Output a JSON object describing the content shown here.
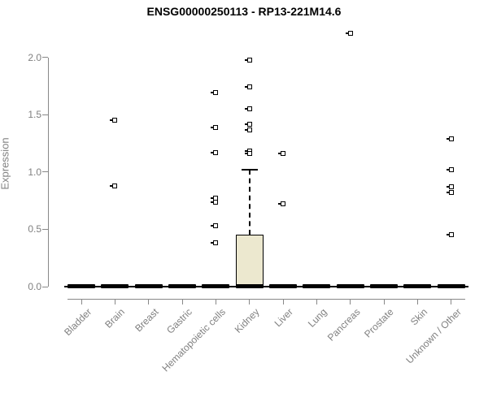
{
  "colors": {
    "box_fill": "#ece8cf",
    "axis": "#888888",
    "tick_label": "#808080",
    "title": "#000000"
  },
  "chart_data": {
    "type": "box",
    "title": "ENSG00000250113 - RP13-221M14.6",
    "xlabel": "",
    "ylabel": "Expression",
    "ylim": [
      0.0,
      2.0
    ],
    "yticks": [
      "0.0",
      "0.5",
      "1.0",
      "1.5",
      "2.0"
    ],
    "grid": false,
    "legend": "none",
    "categories": [
      "Bladder",
      "Brain",
      "Breast",
      "Gastric",
      "Hematopoietic cells",
      "Kidney",
      "Liver",
      "Lung",
      "Pancreas",
      "Prostate",
      "Skin",
      "Unknown / Other"
    ],
    "series": [
      {
        "category": "Bladder",
        "q1": 0,
        "median": 0,
        "q3": 0,
        "whisker_low": 0,
        "whisker_high": 0,
        "outliers": []
      },
      {
        "category": "Brain",
        "q1": 0,
        "median": 0,
        "q3": 0,
        "whisker_low": 0,
        "whisker_high": 0,
        "outliers": [
          1.45,
          0.88
        ]
      },
      {
        "category": "Breast",
        "q1": 0,
        "median": 0,
        "q3": 0,
        "whisker_low": 0,
        "whisker_high": 0,
        "outliers": []
      },
      {
        "category": "Gastric",
        "q1": 0,
        "median": 0,
        "q3": 0,
        "whisker_low": 0,
        "whisker_high": 0,
        "outliers": []
      },
      {
        "category": "Hematopoietic cells",
        "q1": 0,
        "median": 0,
        "q3": 0,
        "whisker_low": 0,
        "whisker_high": 0,
        "outliers": [
          1.69,
          1.39,
          1.17,
          0.77,
          0.74,
          0.53,
          0.38
        ]
      },
      {
        "category": "Kidney",
        "q1": 0,
        "median": 0,
        "q3": 0.45,
        "whisker_low": 0,
        "whisker_high": 1.02,
        "outliers": [
          1.98,
          1.74,
          1.55,
          1.42,
          1.37,
          1.18,
          1.16
        ]
      },
      {
        "category": "Liver",
        "q1": 0,
        "median": 0,
        "q3": 0,
        "whisker_low": 0,
        "whisker_high": 0,
        "outliers": [
          1.16,
          0.72
        ]
      },
      {
        "category": "Lung",
        "q1": 0,
        "median": 0,
        "q3": 0,
        "whisker_low": 0,
        "whisker_high": 0,
        "outliers": []
      },
      {
        "category": "Pancreas",
        "q1": 0,
        "median": 0,
        "q3": 0,
        "whisker_low": 0,
        "whisker_high": 0,
        "outliers": [
          2.21
        ]
      },
      {
        "category": "Prostate",
        "q1": 0,
        "median": 0,
        "q3": 0,
        "whisker_low": 0,
        "whisker_high": 0,
        "outliers": []
      },
      {
        "category": "Skin",
        "q1": 0,
        "median": 0,
        "q3": 0,
        "whisker_low": 0,
        "whisker_high": 0,
        "outliers": []
      },
      {
        "category": "Unknown / Other",
        "q1": 0,
        "median": 0,
        "q3": 0,
        "whisker_low": 0,
        "whisker_high": 0,
        "outliers": [
          1.29,
          1.02,
          0.87,
          0.82,
          0.45
        ]
      }
    ]
  }
}
